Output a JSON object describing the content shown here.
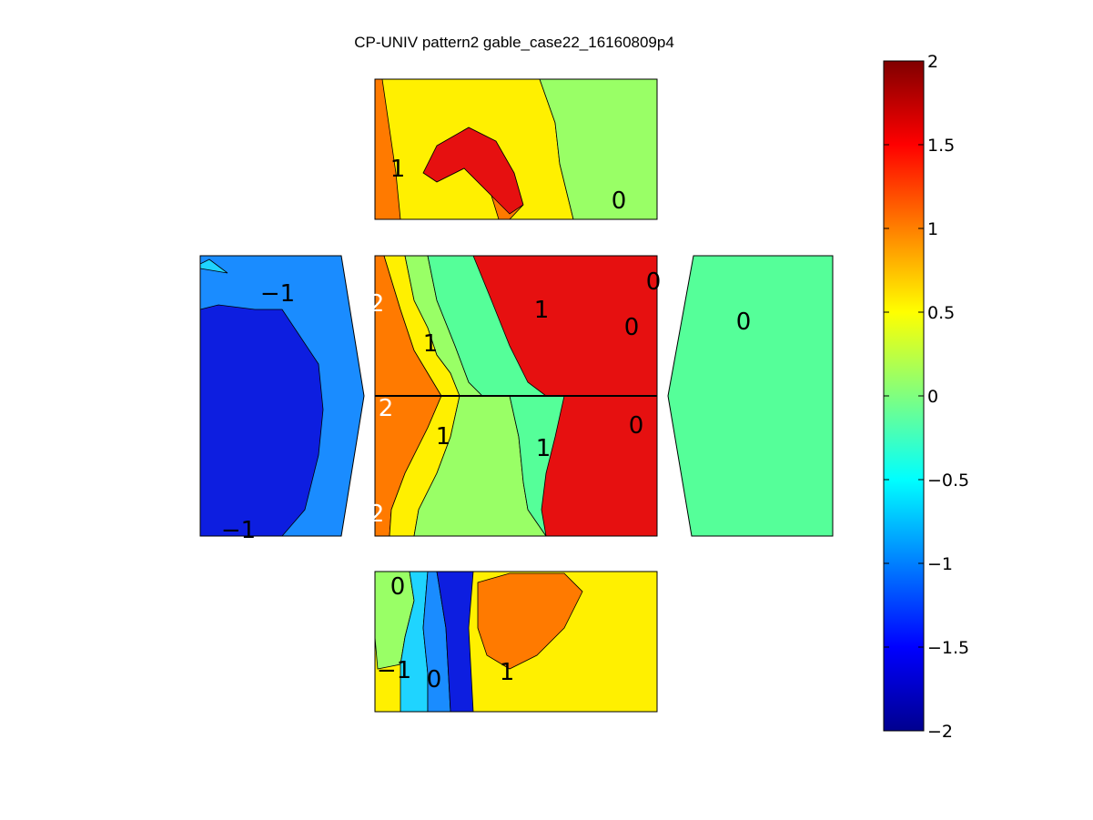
{
  "chart_data": {
    "type": "contour",
    "title": "CP-UNIV pattern2 gable_case22_16160809p4",
    "colorbar": {
      "colormap": "jet",
      "clim": [
        -2,
        2
      ],
      "ticks": [
        2,
        1.5,
        1,
        0.5,
        0,
        -0.5,
        -1,
        -1.5,
        -2
      ],
      "tick_labels": [
        "2",
        "1.5",
        "1",
        "0.5",
        "0",
        "−0.5",
        "−1",
        "−1.5",
        "−2"
      ],
      "placement": "right"
    },
    "panels": [
      {
        "name": "top-wall",
        "regions": [
          {
            "value": 0.75,
            "color": "#ff7a00"
          },
          {
            "value": 1.25,
            "color": "#e61010"
          },
          {
            "value": 0.25,
            "color": "#fff000"
          },
          {
            "value": -0.25,
            "color": "#99ff66"
          }
        ],
        "labels": [
          {
            "text": "1",
            "light": false
          },
          {
            "text": "0",
            "light": false
          }
        ]
      },
      {
        "name": "left-wall",
        "regions": [
          {
            "value": -1.25,
            "color": "#1a8cff"
          },
          {
            "value": -1.75,
            "color": "#0d1ee0"
          },
          {
            "value": -0.75,
            "color": "#1fd4ff"
          }
        ],
        "labels": [
          {
            "text": "−1",
            "light": false
          },
          {
            "text": "−1",
            "light": false
          }
        ]
      },
      {
        "name": "roof-upper",
        "regions": [
          {
            "value": 1.25,
            "color": "#e61010"
          },
          {
            "value": 0.75,
            "color": "#ff7a00"
          },
          {
            "value": 0.25,
            "color": "#fff000"
          },
          {
            "value": -0.25,
            "color": "#99ff66"
          },
          {
            "value": -0.5,
            "color": "#55ff99"
          }
        ],
        "labels": [
          {
            "text": "2",
            "light": true
          },
          {
            "text": "1",
            "light": false
          },
          {
            "text": "1",
            "light": false
          },
          {
            "text": "0",
            "light": false
          },
          {
            "text": "0",
            "light": false
          }
        ]
      },
      {
        "name": "roof-lower",
        "regions": [
          {
            "value": 1.25,
            "color": "#e61010"
          },
          {
            "value": 0.75,
            "color": "#ff7a00"
          },
          {
            "value": 0.25,
            "color": "#fff000"
          },
          {
            "value": -0.25,
            "color": "#99ff66"
          },
          {
            "value": -0.5,
            "color": "#55ff99"
          }
        ],
        "labels": [
          {
            "text": "2",
            "light": true
          },
          {
            "text": "2",
            "light": true
          },
          {
            "text": "1",
            "light": false
          },
          {
            "text": "1",
            "light": false
          },
          {
            "text": "0",
            "light": false
          }
        ]
      },
      {
        "name": "right-wall",
        "regions": [
          {
            "value": -0.25,
            "color": "#55ff99"
          }
        ],
        "labels": [
          {
            "text": "0",
            "light": false
          }
        ]
      },
      {
        "name": "bottom-wall",
        "regions": [
          {
            "value": 0.25,
            "color": "#fff000"
          },
          {
            "value": 0.75,
            "color": "#ff7a00"
          },
          {
            "value": -0.25,
            "color": "#99ff66"
          },
          {
            "value": -0.75,
            "color": "#1fd4ff"
          },
          {
            "value": -1.25,
            "color": "#1a8cff"
          },
          {
            "value": -1.75,
            "color": "#0d1ee0"
          }
        ],
        "labels": [
          {
            "text": "0",
            "light": false
          },
          {
            "text": "−1",
            "light": false
          },
          {
            "text": "0",
            "light": false
          },
          {
            "text": "1",
            "light": false
          }
        ]
      }
    ]
  }
}
